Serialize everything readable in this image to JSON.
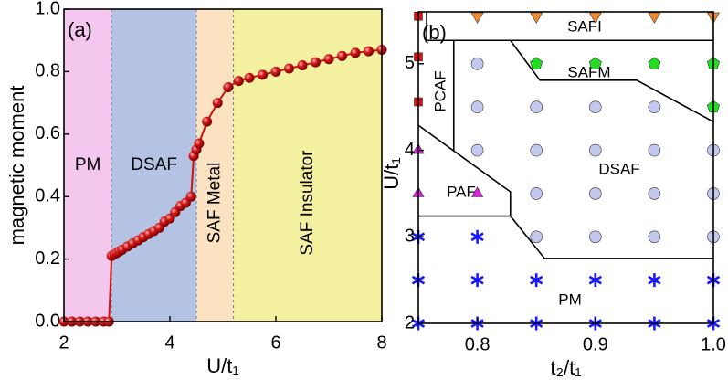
{
  "chart_data": [
    {
      "type": "line",
      "panel_label": "(a)",
      "x_label": "U/t₁",
      "y_label": "magnetic moment",
      "xlim": [
        2,
        8
      ],
      "ylim": [
        0,
        1
      ],
      "xticks": [
        2,
        4,
        6,
        8
      ],
      "yticks": [
        {
          "value": 0,
          "label": "0.0"
        },
        {
          "value": 0.2,
          "label": "0.2"
        },
        {
          "value": 0.4,
          "label": "0.4"
        },
        {
          "value": 0.6,
          "label": "0.6"
        },
        {
          "value": 0.8,
          "label": "0.8"
        },
        {
          "value": 1,
          "label": "1.0"
        }
      ],
      "regions": [
        {
          "label": "PM",
          "from": 2,
          "to": 2.9,
          "color": "#f4c7ef",
          "vertical": false
        },
        {
          "label": "DSAF",
          "from": 2.9,
          "to": 4.5,
          "color": "#b4c3e3",
          "vertical": false
        },
        {
          "label": "SAF Metal",
          "from": 4.5,
          "to": 5.2,
          "color": "#fbe2c0",
          "vertical": true
        },
        {
          "label": "SAF Insulator",
          "from": 5.2,
          "to": 8,
          "color": "#f3f0a0",
          "vertical": true
        }
      ],
      "series": [
        {
          "color": "#cc1111",
          "x": [
            2.0,
            2.15,
            2.3,
            2.45,
            2.6,
            2.75,
            2.85,
            2.9,
            2.95,
            3.0,
            3.05,
            3.1,
            3.2,
            3.3,
            3.4,
            3.5,
            3.6,
            3.7,
            3.8,
            3.9,
            4.0,
            4.1,
            4.2,
            4.3,
            4.4,
            4.45,
            4.5,
            4.55,
            4.7,
            4.9,
            5.1,
            5.3,
            5.5,
            5.75,
            6.0,
            6.25,
            6.5,
            6.75,
            7.0,
            7.25,
            7.5,
            7.75,
            8.0
          ],
          "values": [
            0,
            0,
            0,
            0,
            0,
            0,
            0,
            0.21,
            0.215,
            0.22,
            0.225,
            0.23,
            0.24,
            0.25,
            0.26,
            0.27,
            0.28,
            0.29,
            0.3,
            0.32,
            0.33,
            0.35,
            0.37,
            0.38,
            0.4,
            0.53,
            0.55,
            0.57,
            0.64,
            0.7,
            0.75,
            0.77,
            0.78,
            0.79,
            0.8,
            0.81,
            0.82,
            0.83,
            0.84,
            0.85,
            0.86,
            0.865,
            0.87
          ]
        }
      ]
    },
    {
      "type": "scatter",
      "panel_label": "(b)",
      "x_label": "t₂/t₁",
      "y_label": "U/t₁",
      "xlim": [
        0.75,
        1.0
      ],
      "ylim": [
        2,
        5.6
      ],
      "xticks": [
        0.8,
        0.9,
        {
          "value": 1.0,
          "label": "1.0"
        }
      ],
      "yticks": [
        2,
        3,
        4,
        5
      ],
      "annotations": [
        "SAFI",
        "SAFM",
        "PCAF",
        "PAF",
        "DSAF",
        "PM"
      ],
      "series": [
        {
          "marker": "star",
          "color": "#1a1aff",
          "x": [
            0.75,
            0.8,
            0.85,
            0.9,
            0.95,
            1.0,
            0.75,
            0.8,
            0.85,
            0.9,
            0.95,
            1.0,
            0.75,
            0.8
          ],
          "values": [
            2,
            2,
            2,
            2,
            2,
            2,
            2.5,
            2.5,
            2.5,
            2.5,
            2.5,
            2.5,
            3,
            3
          ]
        },
        {
          "marker": "triangle-down",
          "color": "#f08a30",
          "x": [
            0.8,
            0.85,
            0.9,
            0.95,
            1.0
          ],
          "values": [
            5.55,
            5.55,
            5.55,
            5.55,
            5.55
          ]
        },
        {
          "marker": "square",
          "color": "#dd1111",
          "x": [
            0.75,
            0.75,
            0.75
          ],
          "values": [
            5.55,
            5.08,
            4.56
          ]
        },
        {
          "marker": "triangle-up",
          "color": "#e01ee0",
          "x": [
            0.75,
            0.75,
            0.8
          ],
          "values": [
            4.0,
            3.5,
            3.5
          ]
        },
        {
          "marker": "pentagon",
          "color": "#22dd22",
          "x": [
            0.85,
            0.9,
            0.95,
            1.0,
            1.0
          ],
          "values": [
            5.0,
            5.0,
            5.0,
            5.0,
            4.5
          ]
        },
        {
          "marker": "circle",
          "color": "#c2c8ee",
          "x": [
            0.8,
            0.8,
            0.85,
            0.9,
            0.95,
            0.8,
            0.85,
            0.9,
            0.95,
            1.0,
            0.85,
            0.9,
            0.95,
            1.0,
            0.85,
            0.9,
            0.95,
            1.0
          ],
          "values": [
            5.0,
            4.5,
            4.5,
            4.5,
            4.5,
            4.0,
            4.0,
            4.0,
            4.0,
            4.0,
            3.5,
            3.5,
            3.5,
            3.5,
            3.0,
            3.0,
            3.0,
            3.0
          ]
        }
      ],
      "boundaries": [
        {
          "x": [
            0.757,
            0.757,
            1.0
          ],
          "y": [
            5.6,
            5.27,
            5.27
          ]
        },
        {
          "x": [
            0.78,
            0.78
          ],
          "y": [
            5.27,
            4.0
          ]
        },
        {
          "x": [
            0.75,
            0.828,
            0.828,
            0.75
          ],
          "y": [
            4.29,
            3.52,
            3.24,
            3.24
          ]
        },
        {
          "x": [
            0.828,
            0.853,
            0.935,
            1.0
          ],
          "y": [
            5.27,
            4.81,
            4.81,
            4.33
          ]
        },
        {
          "x": [
            0.828,
            0.857,
            1.0
          ],
          "y": [
            3.24,
            2.75,
            2.75
          ]
        }
      ]
    }
  ]
}
